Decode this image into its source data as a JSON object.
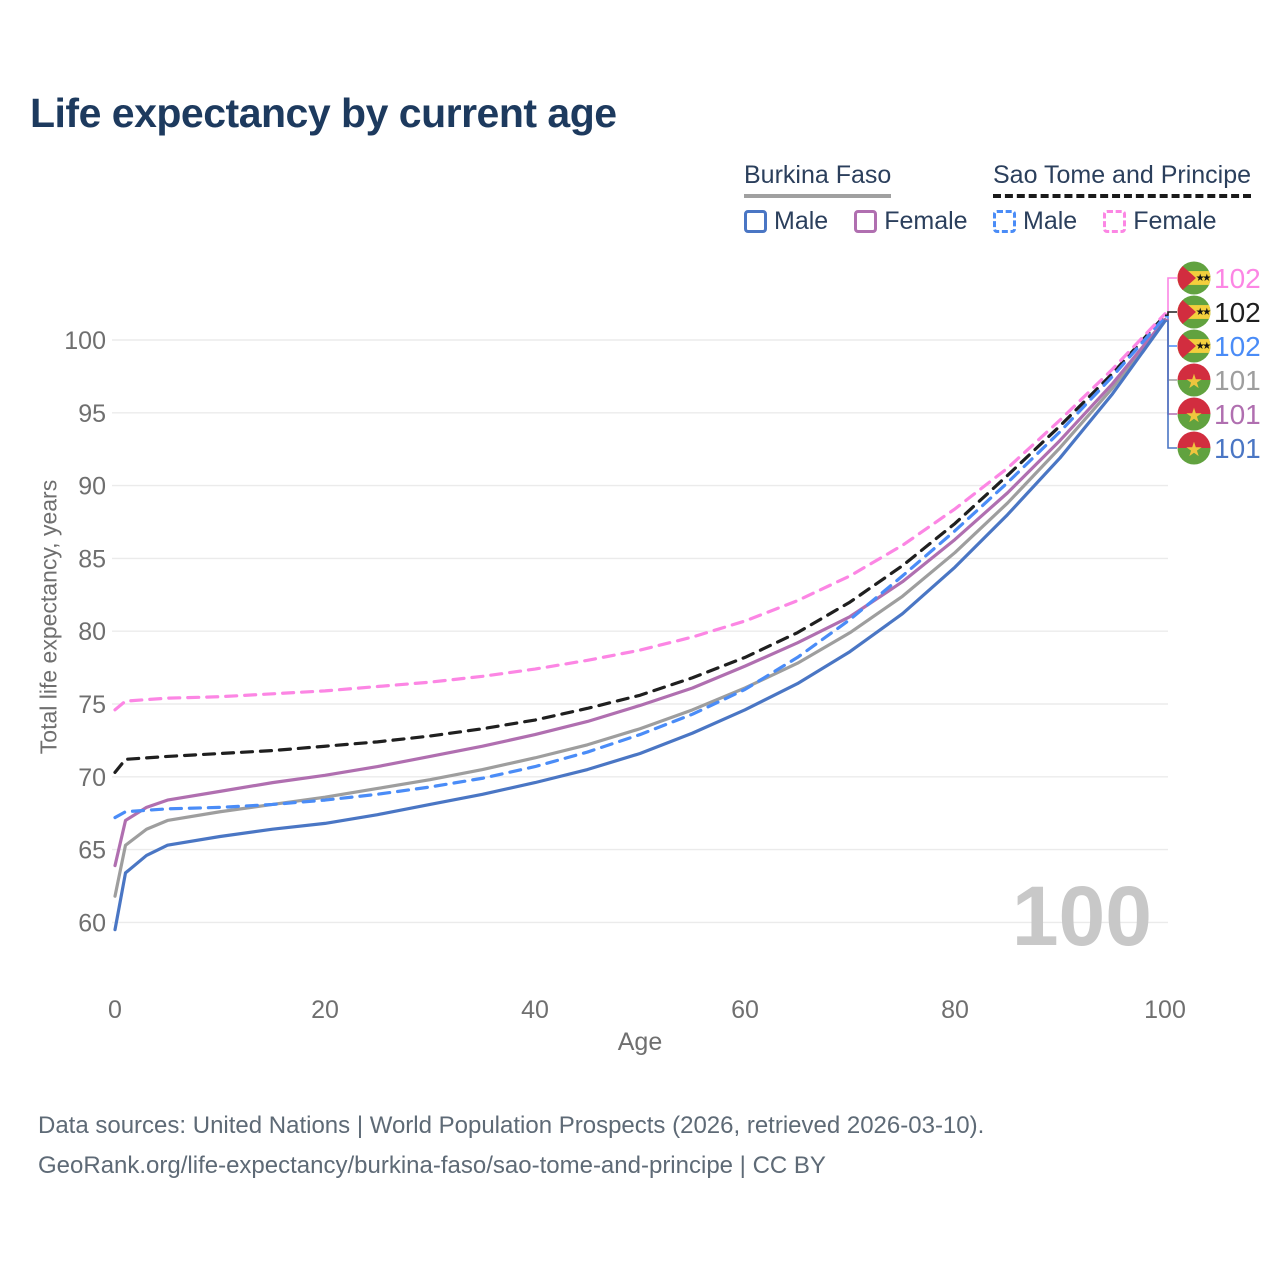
{
  "title": "Life expectancy by current age",
  "watermark": "100",
  "legend": {
    "groups": [
      {
        "label": "Burkina Faso",
        "line_style": "solid",
        "underline_color": "#a0a0a0",
        "items": [
          {
            "label": "Male",
            "color": "#4a76c4",
            "dashed": false
          },
          {
            "label": "Female",
            "color": "#b06fb0",
            "dashed": false
          }
        ]
      },
      {
        "label": "Sao Tome and Principe",
        "line_style": "dashed",
        "underline_color": "#1a1a1a",
        "items": [
          {
            "label": "Male",
            "color": "#4a8cf7",
            "dashed": true
          },
          {
            "label": "Female",
            "color": "#fc86e4",
            "dashed": true
          }
        ]
      }
    ]
  },
  "footer": {
    "line1": "Data sources: United Nations | World Population Prospects (2026, retrieved 2026-03-10).",
    "line2": "GeoRank.org/life-expectancy/burkina-faso/sao-tome-and-principe | CC BY"
  },
  "chart_data": {
    "type": "line",
    "title": "Life expectancy by current age",
    "xlabel": "Age",
    "ylabel": "Total life expectancy, years",
    "xlim": [
      0,
      100
    ],
    "ylim": [
      58.5,
      104
    ],
    "xticks": [
      0,
      20,
      40,
      60,
      80,
      100
    ],
    "yticks": [
      60,
      65,
      70,
      75,
      80,
      85,
      90,
      95,
      100
    ],
    "grid": "horizontal",
    "legend_position": "top-right",
    "x": [
      0,
      1,
      3,
      5,
      10,
      15,
      20,
      25,
      30,
      35,
      40,
      45,
      50,
      55,
      60,
      65,
      70,
      75,
      80,
      85,
      90,
      95,
      100
    ],
    "series": [
      {
        "key": "bf-total",
        "name": "Burkina Faso Total",
        "color": "#9e9e9e",
        "dashed": false,
        "values": [
          61.8,
          65.3,
          66.4,
          67.0,
          67.6,
          68.1,
          68.6,
          69.2,
          69.8,
          70.5,
          71.3,
          72.2,
          73.3,
          74.6,
          76.1,
          77.8,
          79.9,
          82.4,
          85.4,
          88.8,
          92.6,
          96.7,
          101.4
        ]
      },
      {
        "key": "bf-female",
        "name": "Burkina Faso Female",
        "color": "#b06fb0",
        "dashed": false,
        "values": [
          63.9,
          67.0,
          67.9,
          68.4,
          69.0,
          69.6,
          70.1,
          70.7,
          71.4,
          72.1,
          72.9,
          73.8,
          74.9,
          76.1,
          77.6,
          79.2,
          81.0,
          83.4,
          86.3,
          89.5,
          93.1,
          97.0,
          101.4
        ]
      },
      {
        "key": "bf-male",
        "name": "Burkina Faso Male",
        "color": "#4a76c4",
        "dashed": false,
        "values": [
          59.5,
          63.4,
          64.6,
          65.3,
          65.9,
          66.4,
          66.8,
          67.4,
          68.1,
          68.8,
          69.6,
          70.5,
          71.6,
          73.0,
          74.6,
          76.4,
          78.6,
          81.2,
          84.4,
          88.0,
          91.9,
          96.3,
          101.3
        ]
      },
      {
        "key": "stp-total",
        "name": "Sao Tome and Principe Total",
        "color": "#1f1f1f",
        "dashed": true,
        "values": [
          70.3,
          71.2,
          71.3,
          71.4,
          71.6,
          71.8,
          72.1,
          72.4,
          72.8,
          73.3,
          73.9,
          74.7,
          75.6,
          76.8,
          78.2,
          79.9,
          82.0,
          84.5,
          87.4,
          90.7,
          94.1,
          97.7,
          101.7
        ]
      },
      {
        "key": "stp-male",
        "name": "Sao Tome and Principe Male",
        "color": "#4a8cf7",
        "dashed": true,
        "values": [
          67.2,
          67.6,
          67.7,
          67.8,
          67.9,
          68.1,
          68.4,
          68.8,
          69.3,
          69.9,
          70.7,
          71.7,
          72.9,
          74.3,
          76.0,
          78.2,
          80.8,
          83.8,
          86.9,
          90.2,
          93.7,
          97.5,
          101.6
        ]
      },
      {
        "key": "stp-female",
        "name": "Sao Tome and Principe Female",
        "color": "#fc86e4",
        "dashed": true,
        "values": [
          74.6,
          75.2,
          75.3,
          75.4,
          75.5,
          75.7,
          75.9,
          76.2,
          76.5,
          76.9,
          77.4,
          78.0,
          78.7,
          79.6,
          80.7,
          82.1,
          83.8,
          85.9,
          88.4,
          91.2,
          94.5,
          98.0,
          101.8
        ]
      }
    ],
    "end_labels": [
      {
        "series": "stp-female",
        "value": "102",
        "flag": "sao-tome-and-principe"
      },
      {
        "series": "stp-total",
        "value": "102",
        "flag": "sao-tome-and-principe"
      },
      {
        "series": "stp-male",
        "value": "102",
        "flag": "sao-tome-and-principe"
      },
      {
        "series": "bf-total",
        "value": "101",
        "flag": "burkina-faso"
      },
      {
        "series": "bf-female",
        "value": "101",
        "flag": "burkina-faso"
      },
      {
        "series": "bf-male",
        "value": "101",
        "flag": "burkina-faso"
      }
    ]
  }
}
